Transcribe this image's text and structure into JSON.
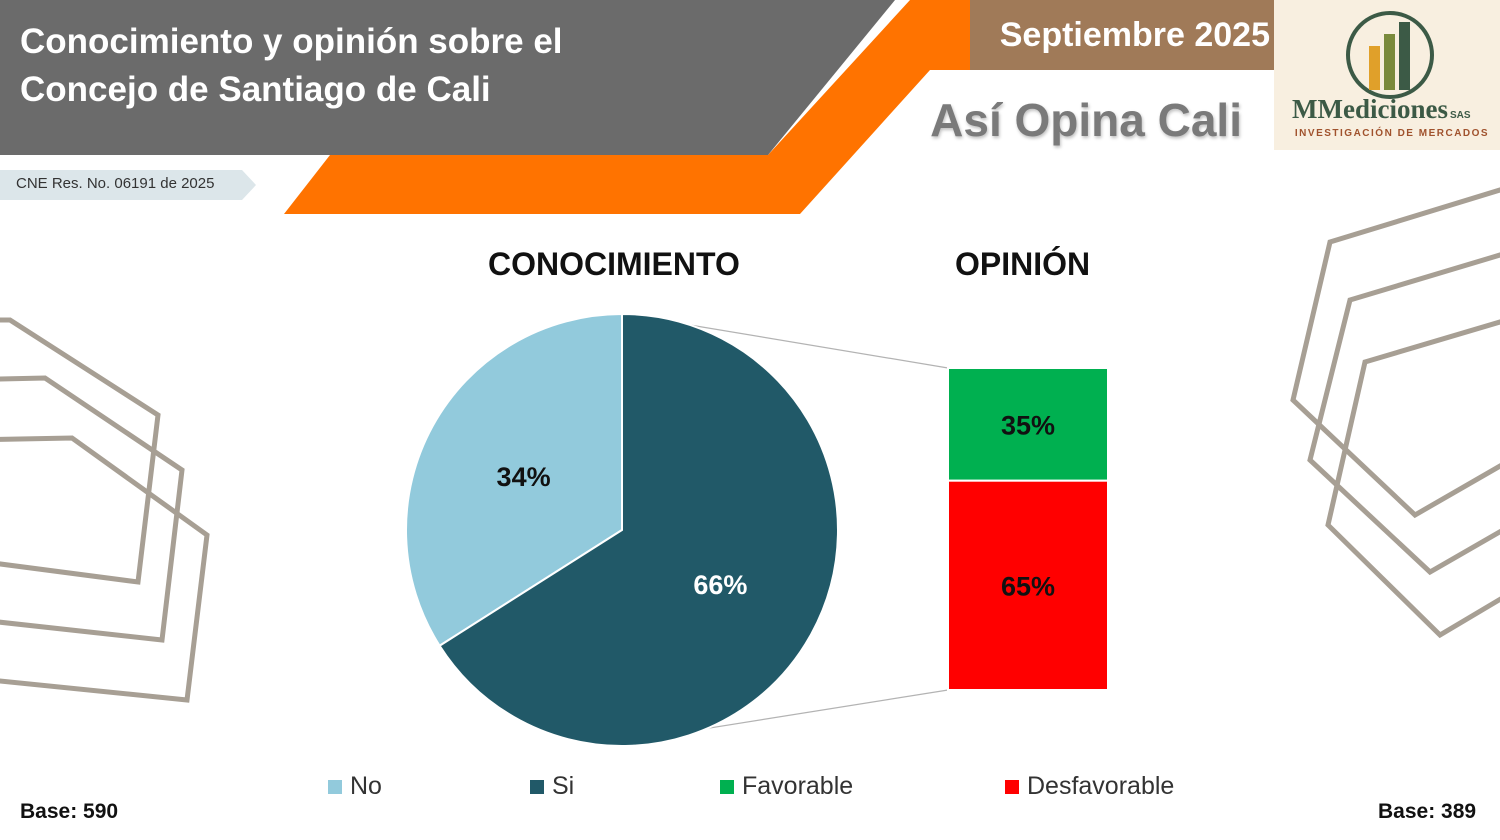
{
  "header": {
    "title_line1": "Conocimiento y opinión sobre el",
    "title_line2": "Concejo de Santiago de Cali",
    "date": "Septiembre 2025",
    "tagline": "Así Opina Cali",
    "registry": "CNE Res. No. 06191 de 2025"
  },
  "logo": {
    "name": "MMediciones",
    "suffix": "SAS",
    "subtitle": "INVESTIGACIÓN DE MERCADOS"
  },
  "colors": {
    "header_gray": "#6b6b6b",
    "orange": "#ff7300",
    "date_brown": "#a07a58",
    "logo_bg": "#f8efe0",
    "hexagon": "#a79f94",
    "no": "#92cadc",
    "si": "#215968",
    "favorable": "#00b050",
    "desfavorable": "#ff0000"
  },
  "chart_data": [
    {
      "type": "pie",
      "title": "CONOCIMIENTO",
      "categories": [
        "No",
        "Si"
      ],
      "values": [
        34,
        66
      ],
      "labels": [
        "34%",
        "66%"
      ],
      "colors": [
        "#92cadc",
        "#215968"
      ],
      "base": "Base: 590"
    },
    {
      "type": "bar",
      "stacked": true,
      "title": "OPINIÓN",
      "categories": [
        "Favorable",
        "Desfavorable"
      ],
      "values": [
        35,
        65
      ],
      "labels": [
        "35%",
        "65%"
      ],
      "colors": [
        "#00b050",
        "#ff0000"
      ],
      "base": "Base: 389"
    }
  ],
  "legend": [
    {
      "label": "No",
      "color": "#92cadc"
    },
    {
      "label": "Si",
      "color": "#215968"
    },
    {
      "label": "Favorable",
      "color": "#00b050"
    },
    {
      "label": "Desfavorable",
      "color": "#ff0000"
    }
  ]
}
